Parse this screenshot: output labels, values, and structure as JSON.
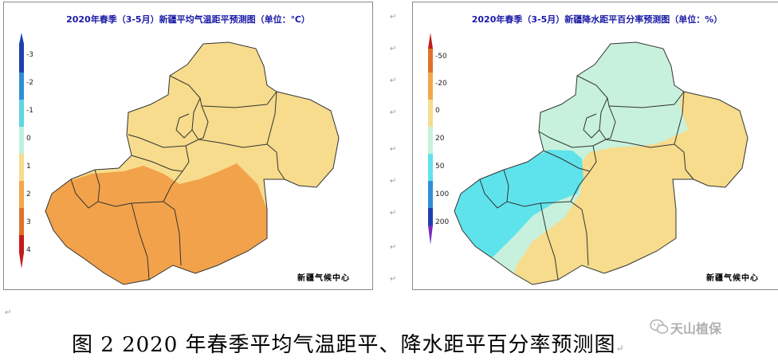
{
  "left_map": {
    "title": "2020年春季（3-5月）新疆平均气温距平预测图（单位：℃）",
    "credit": "新疆气候中心",
    "legend": {
      "labels": [
        "-3",
        "-2",
        "-1",
        "0",
        "1",
        "2",
        "3",
        "4"
      ],
      "colors": [
        "#1f3fb0",
        "#2f8fd6",
        "#5fd5e3",
        "#bff0dc",
        "#f6dc8c",
        "#f3a64a",
        "#e0702a",
        "#c21b1b"
      ]
    },
    "classes": [
      "+1℃ 区 (浅橙)",
      "+2℃ 区 (深橙)"
    ],
    "fill_colors": {
      "light": "#f6dc8c",
      "dark": "#f2a24a",
      "region_lines": "#333333"
    }
  },
  "right_map": {
    "title": "2020年春季（3-5月）新疆降水距平百分率预测图（单位：%）",
    "credit": "新疆气候中心",
    "legend": {
      "labels": [
        "-50",
        "-20",
        "0",
        "20",
        "50",
        "100",
        "200"
      ],
      "colors": [
        "#e0702a",
        "#f3a64a",
        "#f6dc8c",
        "#c7f1dc",
        "#5ee3ec",
        "#2f8fd6",
        "#1f3fb0",
        "#7a2ac2"
      ]
    },
    "fill_colors": {
      "dry": "#f6dc8c",
      "normal": "#c7f1dc",
      "wet": "#5ee3ec",
      "region_lines": "#333333"
    }
  },
  "paragraph_marks": [
    "↵",
    "↵",
    "↵",
    "↵",
    "↵",
    "↵",
    "↵",
    "↵",
    "↵",
    "↵"
  ],
  "caption": "图 2   2020 年春季平均气温距平、降水距平百分率预测图",
  "caption_mark": "↵",
  "watermark": "天山植保",
  "left_margin_mark": "↵"
}
